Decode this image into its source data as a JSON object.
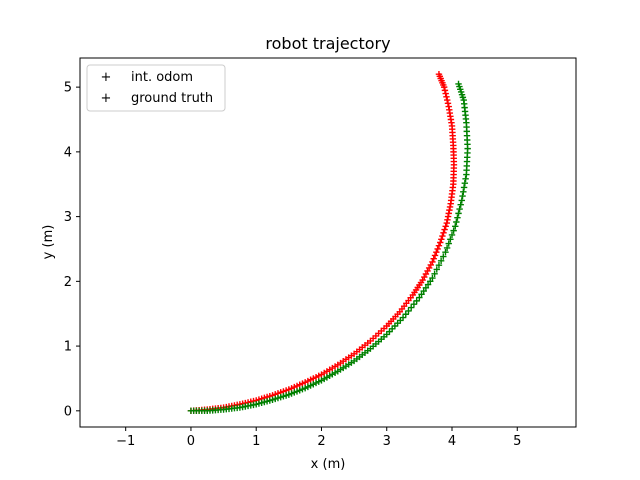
{
  "chart_data": {
    "type": "scatter",
    "title": "robot trajectory",
    "xlabel": "x (m)",
    "ylabel": "y (m)",
    "xlim": [
      -1.7,
      5.9
    ],
    "ylim": [
      -0.25,
      5.45
    ],
    "xticks": [
      -1,
      0,
      1,
      2,
      3,
      4,
      5
    ],
    "yticks": [
      0,
      1,
      2,
      3,
      4,
      5
    ],
    "grid": false,
    "legend_position": "top-left",
    "marker": "+",
    "series": [
      {
        "name": "int. odom",
        "color": "#ff0000",
        "x": [
          0.0,
          0.25,
          0.5,
          0.75,
          1.0,
          1.25,
          1.5,
          1.75,
          2.0,
          2.25,
          2.5,
          2.75,
          3.0,
          3.2,
          3.4,
          3.55,
          3.7,
          3.82,
          3.92,
          3.98,
          4.02,
          4.03,
          4.02,
          4.0,
          3.95,
          3.88,
          3.8
        ],
        "y": [
          0.0,
          0.02,
          0.05,
          0.1,
          0.16,
          0.24,
          0.33,
          0.44,
          0.56,
          0.71,
          0.88,
          1.08,
          1.31,
          1.53,
          1.79,
          2.02,
          2.3,
          2.6,
          2.9,
          3.2,
          3.5,
          3.8,
          4.1,
          4.4,
          4.7,
          5.0,
          5.2
        ]
      },
      {
        "name": "ground truth",
        "color": "#008000",
        "x": [
          0.0,
          0.25,
          0.5,
          0.75,
          1.0,
          1.25,
          1.5,
          1.75,
          2.0,
          2.25,
          2.5,
          2.75,
          3.0,
          3.25,
          3.5,
          3.7,
          3.9,
          4.05,
          4.15,
          4.22,
          4.24,
          4.22,
          4.18,
          4.1
        ],
        "y": [
          0.0,
          0.0,
          0.02,
          0.05,
          0.1,
          0.17,
          0.25,
          0.35,
          0.47,
          0.61,
          0.77,
          0.96,
          1.18,
          1.44,
          1.75,
          2.05,
          2.45,
          2.85,
          3.25,
          3.65,
          4.05,
          4.45,
          4.8,
          5.05
        ]
      }
    ]
  }
}
